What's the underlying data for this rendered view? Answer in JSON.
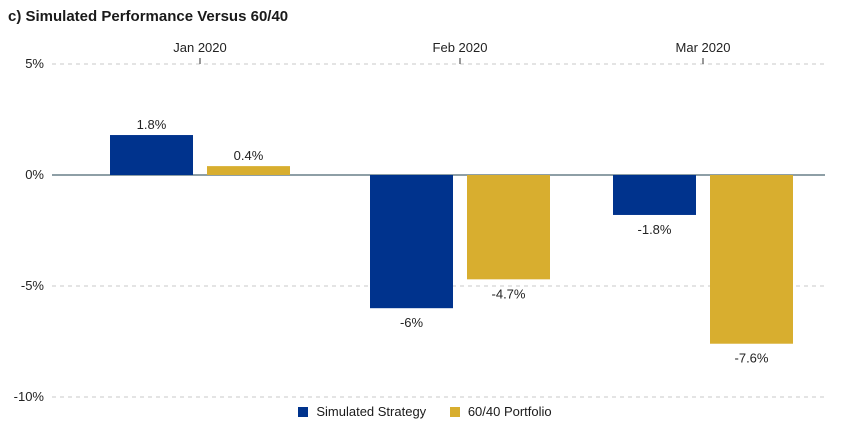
{
  "chart_data": {
    "type": "bar",
    "title": "c) Simulated Performance Versus 60/40",
    "categories": [
      "Jan 2020",
      "Feb 2020",
      "Mar 2020"
    ],
    "series": [
      {
        "name": "Simulated Strategy",
        "color": "#00338D",
        "values": [
          1.8,
          -6.0,
          -1.8
        ],
        "labels": [
          "1.8%",
          "-6%",
          "-1.8%"
        ]
      },
      {
        "name": "60/40 Portfolio",
        "color": "#D8AE2F",
        "values": [
          0.4,
          -4.7,
          -7.6
        ],
        "labels": [
          "0.4%",
          "-4.7%",
          "-7.6%"
        ]
      }
    ],
    "ylim": [
      -10,
      5
    ],
    "yticks": [
      5,
      0,
      -5,
      -10
    ],
    "ytick_labels": [
      "5%",
      "0%",
      "-5%",
      "-10%"
    ],
    "xlabel": "",
    "ylabel": "",
    "grid": true,
    "category_axis_position": "top",
    "legend": "bottom-center"
  }
}
